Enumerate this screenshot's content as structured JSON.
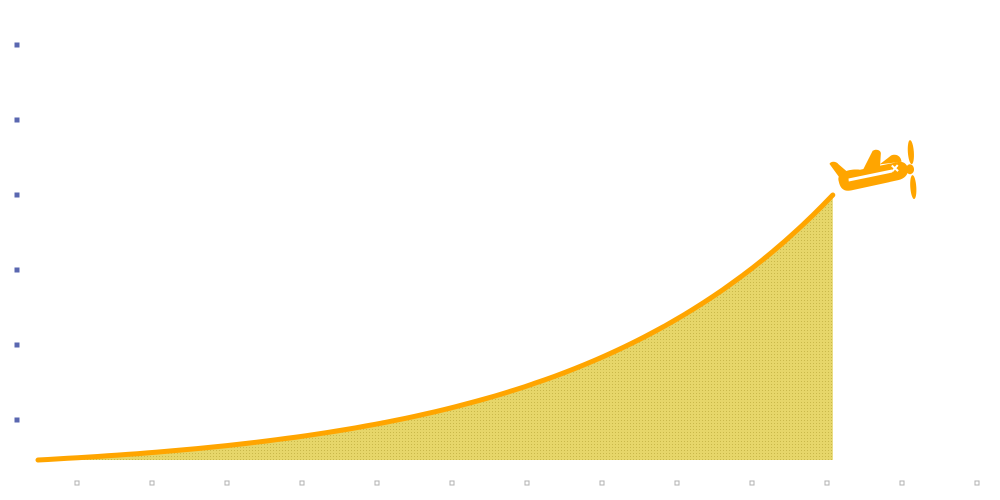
{
  "game": {
    "type": "crash-multiplier-curve",
    "progress_fraction": 0.862,
    "curve_exponent": 3
  },
  "colors": {
    "curve": "#ffa500",
    "fill": "#e6d66a",
    "fill_dots": "#c9b84a",
    "plane": "#ffa500",
    "plane_detail": "#ffffff",
    "y_tick": "#5a67b0",
    "x_tick": "#b0b0b0"
  },
  "icons": {
    "plane": "plane-icon",
    "y_axis_tick": "square-tick-icon",
    "x_axis_tick": "square-tick-icon"
  },
  "y_axis_tick_count": 6,
  "x_axis_tick_count": 13
}
